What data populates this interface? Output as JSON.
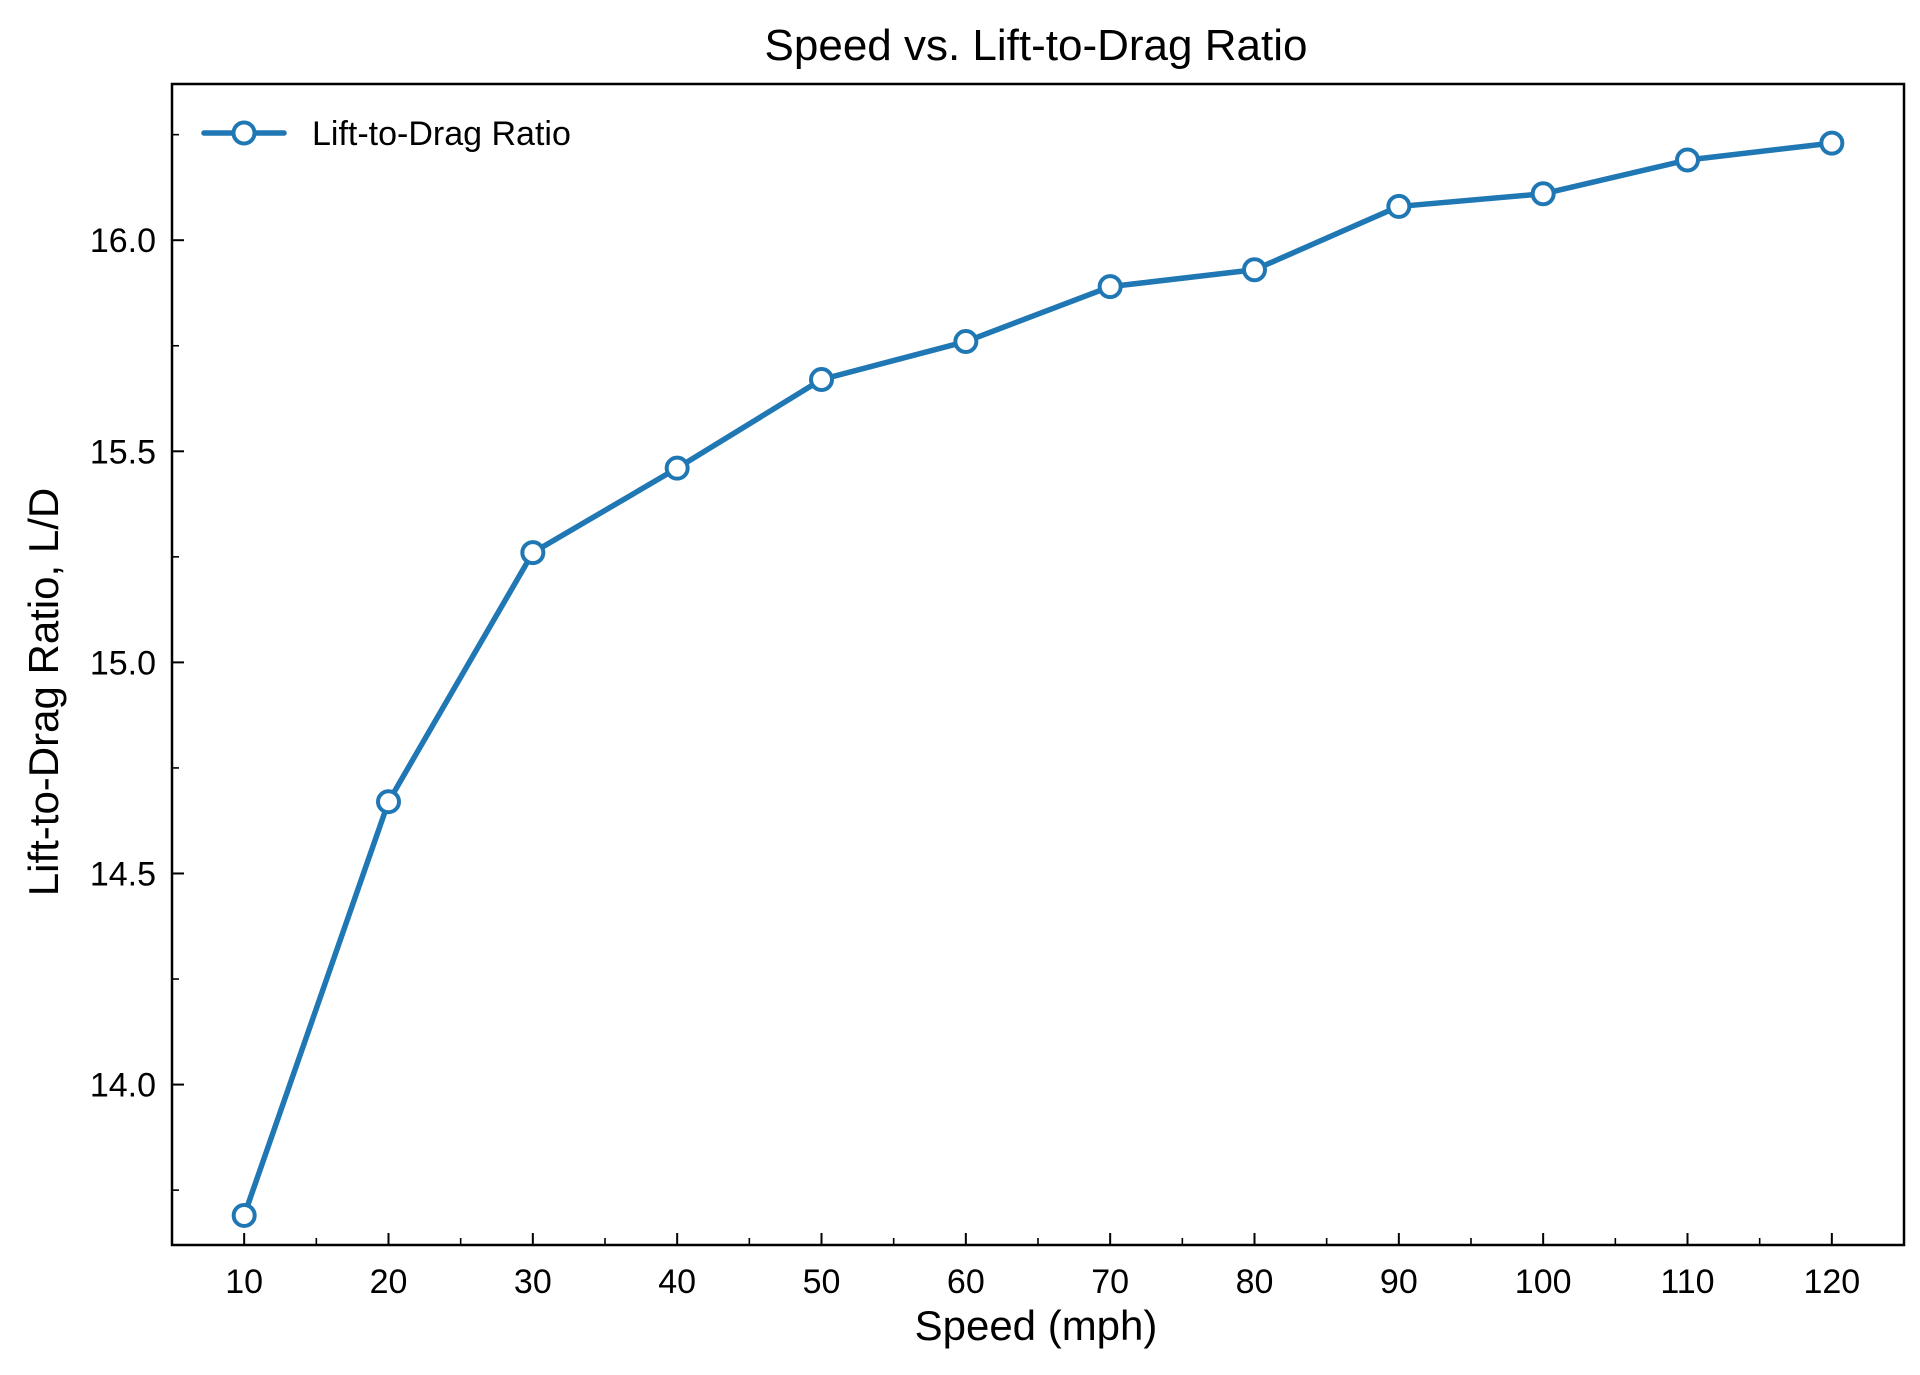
{
  "chart_data": {
    "type": "line",
    "title": "Speed vs. Lift-to-Drag Ratio",
    "xlabel": "Speed (mph)",
    "ylabel": "Lift-to-Drag Ratio, L/D",
    "x": [
      10,
      20,
      30,
      40,
      50,
      60,
      70,
      80,
      90,
      100,
      110,
      120
    ],
    "x_ticks": [
      "10",
      "20",
      "30",
      "40",
      "50",
      "60",
      "70",
      "80",
      "90",
      "100",
      "110",
      "120"
    ],
    "y_ticks": [
      "14.0",
      "14.5",
      "15.0",
      "15.5",
      "16.0"
    ],
    "xlim": [
      5,
      125
    ],
    "ylim": [
      13.62,
      16.37
    ],
    "grid": false,
    "legend_position": "top-left",
    "series": [
      {
        "name": "Lift-to-Drag Ratio",
        "color": "#1f77b4",
        "marker": "open-circle",
        "values": [
          13.69,
          14.67,
          15.26,
          15.46,
          15.67,
          15.76,
          15.89,
          15.93,
          16.08,
          16.11,
          16.19,
          16.23
        ]
      }
    ]
  }
}
